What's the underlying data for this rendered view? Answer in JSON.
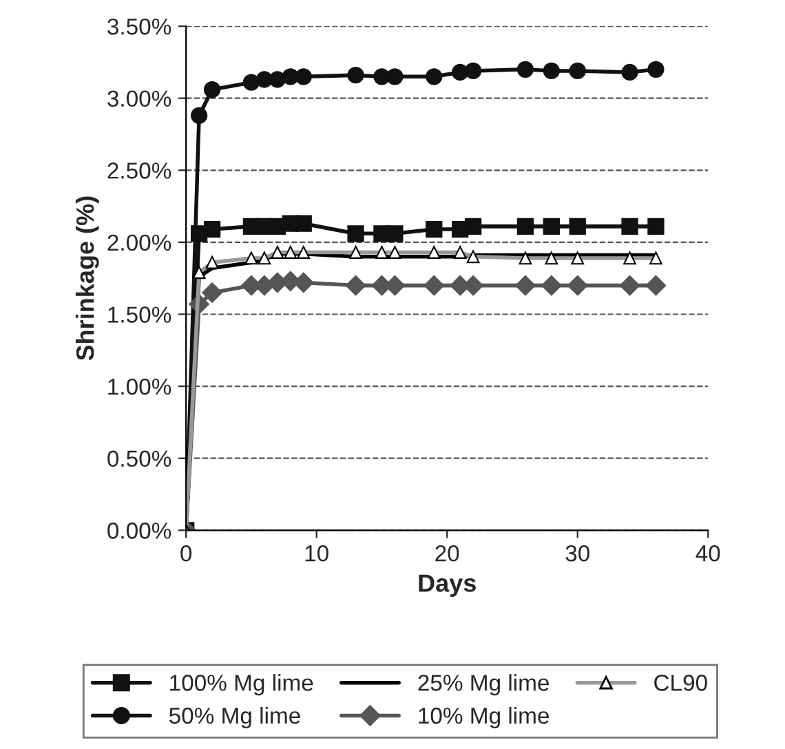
{
  "chart_data": {
    "type": "line",
    "xlabel": "Days",
    "ylabel": "Shrinkage (%)",
    "x": [
      0,
      1,
      2,
      5,
      6,
      7,
      8,
      9,
      13,
      15,
      16,
      19,
      21,
      22,
      26,
      28,
      30,
      34,
      36
    ],
    "series": [
      {
        "name": "100% Mg lime",
        "color": "#111111",
        "marker": "square",
        "values": [
          0,
          2.06,
          2.09,
          2.11,
          2.11,
          2.11,
          2.13,
          2.13,
          2.06,
          2.06,
          2.06,
          2.09,
          2.09,
          2.11,
          2.11,
          2.11,
          2.11,
          2.11,
          2.11
        ]
      },
      {
        "name": "50% Mg lime",
        "color": "#111111",
        "marker": "circle",
        "values": [
          0,
          2.88,
          3.06,
          3.11,
          3.13,
          3.13,
          3.15,
          3.15,
          3.16,
          3.15,
          3.15,
          3.15,
          3.18,
          3.19,
          3.2,
          3.19,
          3.19,
          3.18,
          3.2
        ]
      },
      {
        "name": "25% Mg lime",
        "color": "#000000",
        "marker": "none",
        "values": [
          0,
          1.76,
          1.82,
          1.86,
          1.88,
          1.92,
          1.92,
          1.92,
          1.9,
          1.9,
          1.9,
          1.9,
          1.9,
          1.91,
          1.91,
          1.91,
          1.91,
          1.91,
          1.91
        ]
      },
      {
        "name": "10% Mg lime",
        "color": "#555555",
        "marker": "diamond",
        "values": [
          0,
          1.57,
          1.65,
          1.7,
          1.7,
          1.72,
          1.73,
          1.72,
          1.7,
          1.7,
          1.7,
          1.7,
          1.7,
          1.7,
          1.7,
          1.7,
          1.7,
          1.7,
          1.7
        ]
      },
      {
        "name": "CL90",
        "color": "#999999",
        "marker": "triangle",
        "values": [
          0,
          1.79,
          1.86,
          1.89,
          1.89,
          1.93,
          1.93,
          1.93,
          1.93,
          1.93,
          1.93,
          1.93,
          1.93,
          1.9,
          1.89,
          1.89,
          1.89,
          1.89,
          1.89
        ]
      }
    ],
    "xlim": [
      0,
      40
    ],
    "xticks": [
      0,
      10,
      20,
      30,
      40
    ],
    "ylim": [
      0,
      3.5
    ],
    "yticks": [
      {
        "value": 0,
        "label": "0.00%"
      },
      {
        "value": 0.5,
        "label": "0.50%"
      },
      {
        "value": 1,
        "label": "1.00%"
      },
      {
        "value": 1.5,
        "label": "1.50%"
      },
      {
        "value": 2,
        "label": "2.00%"
      },
      {
        "value": 2.5,
        "label": "2.50%"
      },
      {
        "value": 3,
        "label": "3.00%"
      },
      {
        "value": 3.5,
        "label": "3.50%"
      }
    ],
    "grid": "y",
    "legend": "bottom",
    "line_style": "solid"
  }
}
